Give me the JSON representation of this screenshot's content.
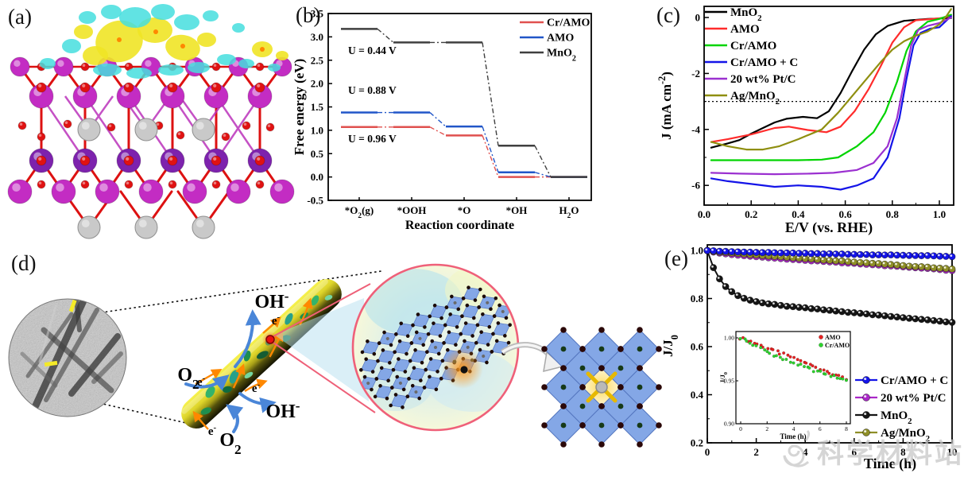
{
  "panels": {
    "a": "(a)",
    "b": "(b)",
    "c": "(c)",
    "d": "(d)",
    "e": "(e)"
  },
  "watermark": {
    "text": "科学材料站"
  },
  "panel_a": {
    "colors": {
      "mn_magenta": "#c32cc3",
      "mn_purple": "#7d22ad",
      "oxygen": "#e01212",
      "silver": "#c9c9c9",
      "silver_edge": "#8f8f8f",
      "bond_red": "#dd1111",
      "bond_magenta": "#bb33bb",
      "iso_yellow": "#f0e426",
      "iso_cyan": "#45dede",
      "iso_orange": "#ff8800"
    }
  },
  "panel_d": {
    "labels": {
      "oh_top": "OH⁻",
      "oh_bottom": "OH⁻",
      "o2_left": "O₂",
      "o2_bottom": "O₂",
      "e": "e⁻"
    },
    "colors": {
      "label_blue": "#3b6fd4",
      "label_orange": "#ff7700",
      "rod_yellow": "#f0e830",
      "flake_greens": [
        "#1e8e4e",
        "#33b36b",
        "#0f6b3f",
        "#74d6a0",
        "#27a08a",
        "#145c33"
      ],
      "tile_blue": "#84a7e6",
      "tile_edge": "#5577c0",
      "dot_dark": "#1c0a06",
      "dot_green": "#173a17",
      "magnifier_pink": "#ef6079",
      "glow_orange": "#ff9a1e"
    }
  },
  "chart_data": [
    {
      "id": "panel-b",
      "type": "step-line",
      "title": "",
      "categories": [
        "*O₂(g)",
        "*OOH",
        "*O",
        "*OH",
        "H₂O"
      ],
      "xlabel": "Reaction coordinate",
      "ylabel": "Free energy (eV)",
      "ylim": [
        -0.5,
        3.5
      ],
      "ytick_step": 0.5,
      "grid": false,
      "legend_position": "top-right",
      "series": [
        {
          "name": "Cr/AMO",
          "color": "#e0514f",
          "values": [
            1.07,
            1.07,
            0.89,
            0.0,
            0.0
          ]
        },
        {
          "name": "AMO",
          "color": "#2156c8",
          "values": [
            1.38,
            1.38,
            1.08,
            0.1,
            0.0
          ]
        },
        {
          "name": "MnO₂",
          "color": "#3f3f3f",
          "values": [
            3.17,
            2.88,
            2.88,
            0.67,
            0.0
          ]
        }
      ],
      "annotations": [
        {
          "text": "U = 0.44 V",
          "y": 2.63
        },
        {
          "text": "U = 0.88 V",
          "y": 1.78
        },
        {
          "text": "U = 0.96 V",
          "y": 0.74
        }
      ]
    },
    {
      "id": "panel-c",
      "type": "line",
      "xlabel": "E/V (vs. RHE)",
      "ylabel": "J (mA cm⁻²)",
      "xlim": [
        0,
        1.06
      ],
      "ylim": [
        -6.7,
        0.4
      ],
      "xticks": [
        0,
        0.2,
        0.4,
        0.6,
        0.8,
        1.0
      ],
      "xticks_minor": [
        0.1,
        0.3,
        0.5,
        0.7,
        0.9
      ],
      "yticks": [
        0,
        -2,
        -4,
        -6
      ],
      "yticks_minor": [
        -1,
        -3,
        -5
      ],
      "refline": -3,
      "legend_position": "top-left",
      "series": [
        {
          "name": "MnO₂",
          "color": "#000000",
          "x": [
            0.03,
            0.1,
            0.15,
            0.2,
            0.25,
            0.3,
            0.35,
            0.42,
            0.48,
            0.53,
            0.58,
            0.63,
            0.68,
            0.73,
            0.78,
            0.85,
            0.95,
            1.05
          ],
          "y": [
            -4.65,
            -4.5,
            -4.38,
            -4.15,
            -3.95,
            -3.75,
            -3.62,
            -3.55,
            -3.6,
            -3.35,
            -2.7,
            -1.9,
            -1.15,
            -0.6,
            -0.3,
            -0.12,
            -0.05,
            -0.02
          ]
        },
        {
          "name": "AMO",
          "color": "#ff2b2b",
          "x": [
            0.03,
            0.1,
            0.2,
            0.3,
            0.36,
            0.44,
            0.52,
            0.58,
            0.64,
            0.7,
            0.75,
            0.8,
            0.85,
            0.9,
            1.0,
            1.05
          ],
          "y": [
            -4.45,
            -4.35,
            -4.18,
            -3.95,
            -3.9,
            -4.02,
            -4.1,
            -3.9,
            -3.35,
            -2.55,
            -1.75,
            -0.9,
            -0.35,
            -0.1,
            -0.03,
            0.05
          ]
        },
        {
          "name": "Cr/AMO",
          "color": "#00d400",
          "x": [
            0.03,
            0.2,
            0.4,
            0.5,
            0.57,
            0.65,
            0.72,
            0.77,
            0.82,
            0.86,
            0.9,
            0.95,
            1.0,
            1.05
          ],
          "y": [
            -5.1,
            -5.1,
            -5.1,
            -5.08,
            -5.0,
            -4.6,
            -4.1,
            -3.4,
            -2.3,
            -1.2,
            -0.5,
            -0.15,
            -0.05,
            0.1
          ]
        },
        {
          "name": "Cr/AMO + C",
          "color": "#1414e8",
          "x": [
            0.03,
            0.1,
            0.2,
            0.3,
            0.4,
            0.5,
            0.58,
            0.65,
            0.72,
            0.78,
            0.83,
            0.86,
            0.89,
            0.92,
            0.96,
            1.0,
            1.05
          ],
          "y": [
            -5.75,
            -5.85,
            -5.95,
            -6.05,
            -6.0,
            -6.05,
            -6.15,
            -6.0,
            -5.75,
            -5.0,
            -3.6,
            -2.2,
            -1.0,
            -0.55,
            -0.4,
            -0.35,
            0.05
          ]
        },
        {
          "name": "20 wt% Pt/C",
          "color": "#9b30d0",
          "x": [
            0.03,
            0.15,
            0.3,
            0.45,
            0.55,
            0.65,
            0.72,
            0.78,
            0.82,
            0.85,
            0.88,
            0.91,
            0.95,
            1.0,
            1.05
          ],
          "y": [
            -5.55,
            -5.58,
            -5.6,
            -5.58,
            -5.55,
            -5.45,
            -5.2,
            -4.6,
            -3.6,
            -2.3,
            -1.0,
            -0.45,
            -0.3,
            -0.2,
            0.0
          ]
        },
        {
          "name": "Ag/MnO₂",
          "color": "#8f8f10",
          "x": [
            0.03,
            0.1,
            0.18,
            0.25,
            0.32,
            0.4,
            0.5,
            0.57,
            0.63,
            0.7,
            0.75,
            0.8,
            0.85,
            0.9,
            0.95,
            1.0,
            1.03,
            1.05
          ],
          "y": [
            -4.45,
            -4.6,
            -4.72,
            -4.72,
            -4.6,
            -4.35,
            -4.0,
            -3.4,
            -2.8,
            -2.1,
            -1.6,
            -1.15,
            -0.85,
            -0.65,
            -0.5,
            -0.25,
            0.05,
            0.3
          ]
        }
      ]
    },
    {
      "id": "panel-e",
      "type": "scatter-line",
      "xlabel": "Time (h)",
      "ylabel": "J/J₀",
      "xlim": [
        0,
        10.3
      ],
      "ylim": [
        0.2,
        1.023
      ],
      "xticks": [
        0,
        2,
        4,
        6,
        8,
        10
      ],
      "xticks_minor": [
        1,
        3,
        5,
        7,
        9
      ],
      "yticks": [
        0.2,
        0.4,
        0.6,
        0.8,
        1.0
      ],
      "yticks_minor": [
        0.3,
        0.5,
        0.7,
        0.9
      ],
      "t_step": 0.25,
      "legend_position": "right",
      "draw_order": [
        2,
        1,
        3,
        0
      ],
      "series": [
        {
          "name": "Cr/AMO + C",
          "color": "#1414e8",
          "values": [
            1.0,
            0.998,
            0.997,
            0.996,
            0.995,
            0.994,
            0.993,
            0.993,
            0.992,
            0.991,
            0.991,
            0.99,
            0.99,
            0.989,
            0.989,
            0.988,
            0.988,
            0.987,
            0.987,
            0.986,
            0.986,
            0.985,
            0.985,
            0.984,
            0.984,
            0.983,
            0.983,
            0.982,
            0.982,
            0.981,
            0.981,
            0.98,
            0.98,
            0.979,
            0.979,
            0.978,
            0.978,
            0.977,
            0.976,
            0.975,
            0.974
          ]
        },
        {
          "name": "20 wt% Pt/C",
          "color": "#aa28c8",
          "values": [
            1.0,
            0.993,
            0.989,
            0.986,
            0.983,
            0.98,
            0.978,
            0.976,
            0.974,
            0.972,
            0.97,
            0.968,
            0.966,
            0.964,
            0.962,
            0.961,
            0.959,
            0.957,
            0.956,
            0.954,
            0.952,
            0.951,
            0.949,
            0.947,
            0.946,
            0.944,
            0.942,
            0.941,
            0.939,
            0.937,
            0.936,
            0.934,
            0.932,
            0.93,
            0.928,
            0.927,
            0.925,
            0.923,
            0.921,
            0.918,
            0.916
          ]
        },
        {
          "name": "MnO₂",
          "color": "#151515",
          "values": [
            1.0,
            0.929,
            0.882,
            0.85,
            0.828,
            0.812,
            0.801,
            0.793,
            0.787,
            0.782,
            0.778,
            0.775,
            0.771,
            0.768,
            0.766,
            0.763,
            0.761,
            0.758,
            0.756,
            0.753,
            0.751,
            0.748,
            0.746,
            0.743,
            0.741,
            0.738,
            0.736,
            0.733,
            0.731,
            0.728,
            0.726,
            0.723,
            0.721,
            0.718,
            0.716,
            0.713,
            0.711,
            0.708,
            0.706,
            0.703,
            0.701
          ]
        },
        {
          "name": "Ag/MnO₂",
          "color": "#8f8f28",
          "values": [
            1.0,
            0.996,
            0.993,
            0.991,
            0.989,
            0.987,
            0.985,
            0.983,
            0.981,
            0.979,
            0.977,
            0.975,
            0.974,
            0.972,
            0.97,
            0.968,
            0.966,
            0.965,
            0.963,
            0.961,
            0.959,
            0.957,
            0.956,
            0.954,
            0.952,
            0.95,
            0.948,
            0.947,
            0.945,
            0.943,
            0.941,
            0.939,
            0.937,
            0.935,
            0.933,
            0.932,
            0.93,
            0.928,
            0.926,
            0.925,
            0.923
          ]
        }
      ]
    },
    {
      "id": "panel-e-inset",
      "type": "scatter",
      "xlabel": "Time (h)",
      "ylabel": "J/J₀",
      "xlim": [
        0,
        8
      ],
      "ylim": [
        0.9,
        1.005
      ],
      "xticks": [
        0,
        2,
        4,
        6,
        8
      ],
      "yticks": [
        1.0,
        0.95,
        0.9
      ],
      "t_step": 0.25,
      "series": [
        {
          "name": "AMO",
          "color": "#e62222",
          "values": [
            1.0,
            0.999,
            0.997,
            0.996,
            0.994,
            0.993,
            0.991,
            0.99,
            0.988,
            0.987,
            0.985,
            0.984,
            0.982,
            0.981,
            0.979,
            0.978,
            0.976,
            0.975,
            0.973,
            0.972,
            0.97,
            0.969,
            0.967,
            0.966,
            0.964,
            0.963,
            0.961,
            0.96,
            0.958,
            0.957,
            0.955,
            0.954,
            0.952
          ]
        },
        {
          "name": "Cr/AMO",
          "color": "#2ed42e",
          "values": [
            1.0,
            0.998,
            0.996,
            0.994,
            0.992,
            0.99,
            0.988,
            0.986,
            0.984,
            0.982,
            0.98,
            0.979,
            0.977,
            0.975,
            0.974,
            0.972,
            0.971,
            0.969,
            0.968,
            0.966,
            0.965,
            0.964,
            0.962,
            0.961,
            0.96,
            0.959,
            0.957,
            0.956,
            0.955,
            0.954,
            0.953,
            0.952,
            0.951
          ]
        }
      ]
    }
  ]
}
